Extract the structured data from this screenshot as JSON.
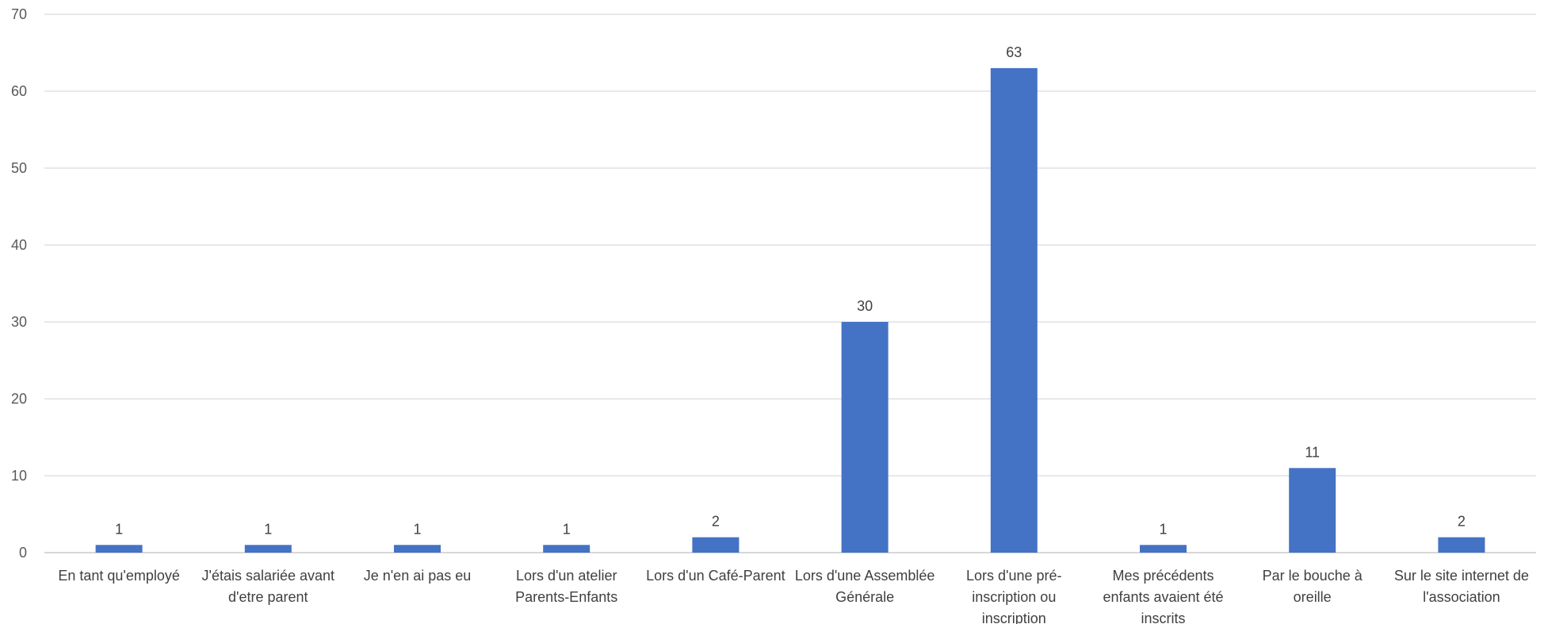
{
  "chart_data": {
    "type": "bar",
    "title": "",
    "xlabel": "",
    "ylabel": "",
    "ylim": [
      0,
      70
    ],
    "yticks": [
      0,
      10,
      20,
      30,
      40,
      50,
      60,
      70
    ],
    "grid": true,
    "legend": "none",
    "bar_color": "#4472C4",
    "categories": [
      [
        "En tant qu'employé"
      ],
      [
        "J'étais salariée avant",
        "d'etre parent"
      ],
      [
        "Je n'en ai pas eu"
      ],
      [
        "Lors d'un atelier",
        "Parents-Enfants"
      ],
      [
        "Lors d'un Café-Parent"
      ],
      [
        "Lors d'une Assemblée",
        "Générale"
      ],
      [
        "Lors d'une pré-",
        "inscription ou",
        "inscription"
      ],
      [
        "Mes précédents",
        "enfants avaient été",
        "inscrits"
      ],
      [
        "Par le bouche à",
        "oreille"
      ],
      [
        "Sur le site internet de",
        "l'association"
      ]
    ],
    "values": [
      1,
      1,
      1,
      1,
      2,
      30,
      63,
      1,
      11,
      2
    ]
  }
}
